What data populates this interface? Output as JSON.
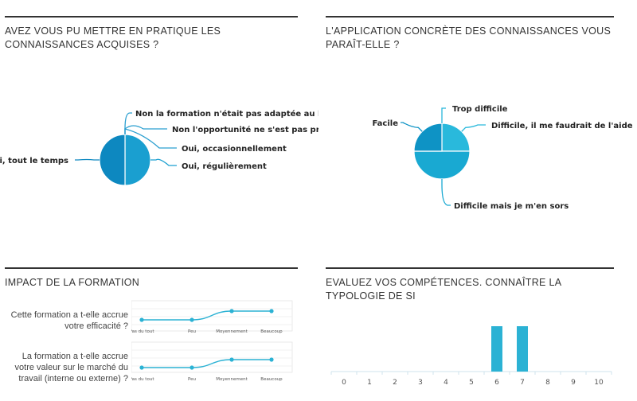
{
  "panels": {
    "p1": {
      "title": "AVEZ VOUS PU METTRE EN PRATIQUE LES CONNAISSANCES ACQUISES ?"
    },
    "p2": {
      "title": "L'APPLICATION CONCRÈTE DES CONNAISSANCES VOUS PARAÎT-ELLE ?"
    },
    "p3": {
      "title": "IMPACT DE LA FORMATION"
    },
    "p4": {
      "title": "EVALUEZ VOS COMPÉTENCES. CONNAÎTRE LA TYPOLOGIE DE SI"
    }
  },
  "chart_data": [
    {
      "type": "pie",
      "title": "AVEZ VOUS PU METTRE EN PRATIQUE LES CONNAISSANCES ACQUISES ?",
      "categories": [
        "Non la formation n'était pas adaptée au bes",
        "Non l'opportunité ne s'est pas pré",
        "Oui, occasionnellement",
        "Oui, régulièrement",
        "ui, tout le temps"
      ],
      "values": [
        0,
        0,
        0,
        50,
        50
      ],
      "colors": [
        "#2b9fd0",
        "#2b9fd0",
        "#2b9fd0",
        "#1a9fd0",
        "#0d88c0"
      ]
    },
    {
      "type": "pie",
      "title": "L'APPLICATION CONCRÈTE DES CONNAISSANCES VOUS PARAÎT-ELLE ?",
      "categories": [
        "Trop difficile",
        "Difficile, il me faudrait de l'aide",
        "Difficile mais je m'en sors",
        "Facile"
      ],
      "values": [
        0,
        25,
        50,
        25
      ],
      "colors": [
        "#28b7da",
        "#29b9dc",
        "#19a9d2",
        "#0e93c5"
      ]
    },
    {
      "type": "line",
      "title": "IMPACT DE LA FORMATION",
      "categories": [
        "Pas du tout",
        "Peu",
        "Moyennement",
        "Beaucoup"
      ],
      "series": [
        {
          "name": "Cette formation a t-elle accrue votre efficacité ?",
          "values": [
            0,
            0,
            1,
            1
          ]
        },
        {
          "name": "La formation a t-elle accrue votre valeur sur le marché du travail (interne ou externe) ?",
          "values": [
            0,
            0,
            1,
            1
          ]
        }
      ],
      "color": "#2bb2d4"
    },
    {
      "type": "bar",
      "title": "EVALUEZ VOS COMPÉTENCES. CONNAÎTRE LA TYPOLOGIE DE SI",
      "categories": [
        "0",
        "1",
        "2",
        "3",
        "4",
        "5",
        "6",
        "7",
        "8",
        "9",
        "10"
      ],
      "values": [
        0,
        0,
        0,
        0,
        0,
        0,
        1,
        1,
        0,
        0,
        0
      ],
      "color": "#2bb2d4",
      "ylim": [
        0,
        1
      ]
    }
  ]
}
